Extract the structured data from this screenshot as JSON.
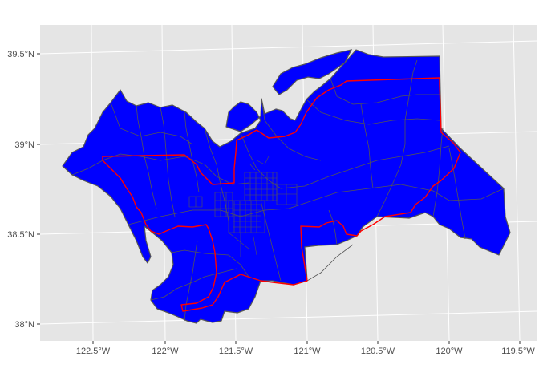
{
  "map": {
    "panel_background": "#e5e5e5",
    "grid_color": "#ffffff",
    "fill_color": "#0000ff",
    "tract_border_color": "#555555",
    "district_border_color": "#ff0000",
    "lon_ticks": [
      {
        "value": -122.5,
        "label": "122.5°W"
      },
      {
        "value": -122.0,
        "label": "122°W"
      },
      {
        "value": -121.5,
        "label": "121.5°W"
      },
      {
        "value": -121.0,
        "label": "121°W"
      },
      {
        "value": -120.5,
        "label": "120.5°W"
      },
      {
        "value": -120.0,
        "label": "120°W"
      },
      {
        "value": -119.5,
        "label": "119.5°W"
      }
    ],
    "lat_ticks": [
      {
        "value": 39.5,
        "label": "39.5°N"
      },
      {
        "value": 39.0,
        "label": "39°N"
      },
      {
        "value": 38.5,
        "label": "38.5°N"
      },
      {
        "value": 38.0,
        "label": "38°N"
      }
    ]
  }
}
